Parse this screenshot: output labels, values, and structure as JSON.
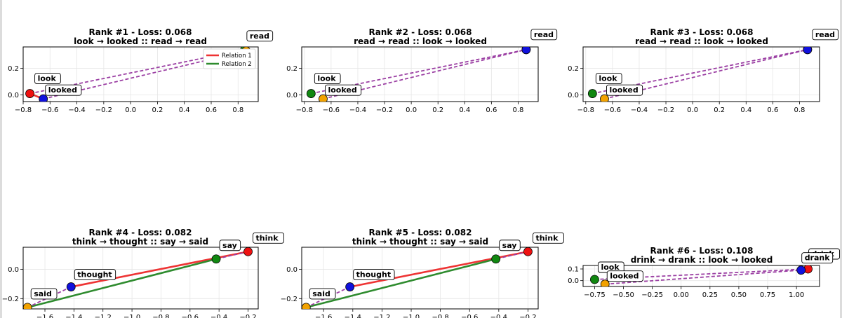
{
  "colors": {
    "relation1": "#ee3333",
    "relation2": "#2e8b2e",
    "dashed": "#9b3fa3",
    "red_point": "#ee1111",
    "blue_point": "#1111dd",
    "green_point": "#118811",
    "orange_point": "#f2a200",
    "grid": "#e6e6e6"
  },
  "legend": {
    "relation1": "Relation 1",
    "relation2": "Relation 2"
  },
  "chart_data": [
    {
      "type": "scatter",
      "title": "Rank #1 - Loss: 0.068",
      "subtitle": "look → looked :: read → read",
      "xlim": [
        -0.8,
        0.95
      ],
      "ylim": [
        -0.05,
        0.36
      ],
      "xticks": [
        -0.8,
        -0.6,
        -0.4,
        -0.2,
        0.0,
        0.2,
        0.4,
        0.6,
        0.8
      ],
      "xtick_labels": [
        "−0.8",
        "−0.6",
        "−0.4",
        "−0.2",
        "0.0",
        "0.2",
        "0.4",
        "0.6",
        "0.8"
      ],
      "yticks": [
        0.0,
        0.2
      ],
      "ytick_labels": [
        "0.0",
        "0.2"
      ],
      "legend": "top-right",
      "points": [
        {
          "word": "look",
          "x": -0.75,
          "y": 0.01,
          "color": "red"
        },
        {
          "word": "looked",
          "x": -0.65,
          "y": -0.03,
          "color": "blue"
        },
        {
          "word": "read",
          "x": 0.85,
          "y": 0.34,
          "color": "green"
        },
        {
          "word": "read",
          "x": 0.86,
          "y": 0.33,
          "color": "orange"
        }
      ],
      "relation_lines": [
        {
          "from": 0,
          "to": 1,
          "style": "relation1"
        },
        {
          "from": 2,
          "to": 3,
          "style": "relation2"
        }
      ],
      "dashed_lines": [
        [
          0,
          2
        ],
        [
          1,
          3
        ]
      ],
      "labels": [
        {
          "point": 0,
          "text": "look",
          "dx": 10,
          "dy": -18
        },
        {
          "point": 1,
          "text": "looked",
          "dx": 6,
          "dy": -9
        },
        {
          "point": 2,
          "text": "read",
          "dx": 6,
          "dy": -16
        }
      ]
    },
    {
      "type": "scatter",
      "title": "Rank #2 - Loss: 0.068",
      "subtitle": "read → read :: look → looked",
      "xlim": [
        -0.82,
        0.95
      ],
      "ylim": [
        -0.05,
        0.36
      ],
      "xticks": [
        -0.8,
        -0.6,
        -0.4,
        -0.2,
        0.0,
        0.2,
        0.4,
        0.6,
        0.8
      ],
      "xtick_labels": [
        "−0.8",
        "−0.6",
        "−0.4",
        "−0.2",
        "0.0",
        "0.2",
        "0.4",
        "0.6",
        "0.8"
      ],
      "yticks": [
        0.0,
        0.2
      ],
      "ytick_labels": [
        "0.0",
        "0.2"
      ],
      "points": [
        {
          "word": "read",
          "x": 0.86,
          "y": 0.34,
          "color": "red"
        },
        {
          "word": "read",
          "x": 0.86,
          "y": 0.34,
          "color": "blue"
        },
        {
          "word": "look",
          "x": -0.75,
          "y": 0.01,
          "color": "green"
        },
        {
          "word": "looked",
          "x": -0.66,
          "y": -0.03,
          "color": "orange"
        }
      ],
      "relation_lines": [],
      "dashed_lines": [
        [
          2,
          0
        ],
        [
          3,
          1
        ]
      ],
      "labels": [
        {
          "point": 0,
          "text": "read",
          "dx": 10,
          "dy": -18
        },
        {
          "point": 2,
          "text": "look",
          "dx": 8,
          "dy": -18
        },
        {
          "point": 3,
          "text": "looked",
          "dx": 6,
          "dy": -9
        }
      ]
    },
    {
      "type": "scatter",
      "title": "Rank #3 - Loss: 0.068",
      "subtitle": "read → read :: look → looked",
      "xlim": [
        -0.82,
        0.95
      ],
      "ylim": [
        -0.05,
        0.36
      ],
      "xticks": [
        -0.8,
        -0.6,
        -0.4,
        -0.2,
        0.0,
        0.2,
        0.4,
        0.6,
        0.8
      ],
      "xtick_labels": [
        "−0.8",
        "−0.6",
        "−0.4",
        "−0.2",
        "0.0",
        "0.2",
        "0.4",
        "0.6",
        "0.8"
      ],
      "yticks": [
        0.0,
        0.2
      ],
      "ytick_labels": [
        "0.0",
        "0.2"
      ],
      "points": [
        {
          "word": "read",
          "x": 0.86,
          "y": 0.34,
          "color": "red"
        },
        {
          "word": "read",
          "x": 0.86,
          "y": 0.34,
          "color": "blue"
        },
        {
          "word": "look",
          "x": -0.75,
          "y": 0.01,
          "color": "green"
        },
        {
          "word": "looked",
          "x": -0.66,
          "y": -0.03,
          "color": "orange"
        }
      ],
      "relation_lines": [],
      "dashed_lines": [
        [
          2,
          0
        ],
        [
          3,
          1
        ]
      ],
      "labels": [
        {
          "point": 0,
          "text": "read",
          "dx": 10,
          "dy": -18
        },
        {
          "point": 2,
          "text": "look",
          "dx": 8,
          "dy": -18
        },
        {
          "point": 3,
          "text": "looked",
          "dx": 6,
          "dy": -9
        }
      ]
    },
    {
      "type": "scatter",
      "title": "Rank #4 - Loss: 0.082",
      "subtitle": "think → thought :: say → said",
      "xlim": [
        -1.75,
        -0.13
      ],
      "ylim": [
        -0.27,
        0.15
      ],
      "xticks": [
        -1.6,
        -1.4,
        -1.2,
        -1.0,
        -0.8,
        -0.6,
        -0.4,
        -0.2
      ],
      "xtick_labels": [
        "−1.6",
        "−1.4",
        "−1.2",
        "−1.0",
        "−0.8",
        "−0.6",
        "−0.4",
        "−0.2"
      ],
      "yticks": [
        -0.2,
        0.0
      ],
      "ytick_labels": [
        "−0.2",
        "0.0"
      ],
      "points": [
        {
          "word": "think",
          "x": -0.2,
          "y": 0.12,
          "color": "red"
        },
        {
          "word": "thought",
          "x": -1.42,
          "y": -0.12,
          "color": "blue"
        },
        {
          "word": "say",
          "x": -0.42,
          "y": 0.07,
          "color": "green"
        },
        {
          "word": "said",
          "x": -1.72,
          "y": -0.26,
          "color": "orange"
        }
      ],
      "relation_lines": [
        {
          "from": 0,
          "to": 1,
          "style": "relation1"
        },
        {
          "from": 2,
          "to": 3,
          "style": "relation2"
        }
      ],
      "dashed_lines": [
        [
          0,
          2
        ],
        [
          1,
          3
        ]
      ],
      "labels": [
        {
          "point": 0,
          "text": "think",
          "dx": 10,
          "dy": -16
        },
        {
          "point": 1,
          "text": "thought",
          "dx": 8,
          "dy": -14
        },
        {
          "point": 2,
          "text": "say",
          "dx": 8,
          "dy": -16
        },
        {
          "point": 3,
          "text": "said",
          "dx": 8,
          "dy": -16
        }
      ]
    },
    {
      "type": "scatter",
      "title": "Rank #5 - Loss: 0.082",
      "subtitle": "think → thought :: say → said",
      "xlim": [
        -1.75,
        -0.13
      ],
      "ylim": [
        -0.27,
        0.15
      ],
      "xticks": [
        -1.6,
        -1.4,
        -1.2,
        -1.0,
        -0.8,
        -0.6,
        -0.4,
        -0.2
      ],
      "xtick_labels": [
        "−1.6",
        "−1.4",
        "−1.2",
        "−1.0",
        "−0.8",
        "−0.6",
        "−0.4",
        "−0.2"
      ],
      "yticks": [
        -0.2,
        0.0
      ],
      "ytick_labels": [
        "−0.2",
        "0.0"
      ],
      "points": [
        {
          "word": "think",
          "x": -0.2,
          "y": 0.12,
          "color": "red"
        },
        {
          "word": "thought",
          "x": -1.42,
          "y": -0.12,
          "color": "blue"
        },
        {
          "word": "say",
          "x": -0.42,
          "y": 0.07,
          "color": "green"
        },
        {
          "word": "said",
          "x": -1.72,
          "y": -0.26,
          "color": "orange"
        }
      ],
      "relation_lines": [
        {
          "from": 0,
          "to": 1,
          "style": "relation1"
        },
        {
          "from": 2,
          "to": 3,
          "style": "relation2"
        }
      ],
      "dashed_lines": [
        [
          0,
          2
        ],
        [
          1,
          3
        ]
      ],
      "labels": [
        {
          "point": 0,
          "text": "think",
          "dx": 10,
          "dy": -16
        },
        {
          "point": 1,
          "text": "thought",
          "dx": 8,
          "dy": -14
        },
        {
          "point": 2,
          "text": "say",
          "dx": 8,
          "dy": -16
        },
        {
          "point": 3,
          "text": "said",
          "dx": 8,
          "dy": -16
        }
      ]
    },
    {
      "type": "scatter",
      "title": "Rank #6 - Loss: 0.108",
      "subtitle": "drink → drank :: look → looked",
      "xlim": [
        -0.85,
        1.2
      ],
      "ylim": [
        -0.05,
        0.13
      ],
      "xticks": [
        -0.75,
        -0.5,
        -0.25,
        0.0,
        0.25,
        0.5,
        0.75,
        1.0
      ],
      "xtick_labels": [
        "−0.75",
        "−0.50",
        "−0.25",
        "0.00",
        "0.25",
        "0.50",
        "0.75",
        "1.00"
      ],
      "yticks": [
        0.0,
        0.1
      ],
      "ytick_labels": [
        "0.0",
        "0.1"
      ],
      "points": [
        {
          "word": "drink",
          "x": 1.1,
          "y": 0.1,
          "color": "red"
        },
        {
          "word": "drank",
          "x": 1.04,
          "y": 0.09,
          "color": "blue"
        },
        {
          "word": "look",
          "x": -0.75,
          "y": 0.01,
          "color": "green"
        },
        {
          "word": "looked",
          "x": -0.66,
          "y": -0.03,
          "color": "orange"
        }
      ],
      "relation_lines": [],
      "dashed_lines": [
        [
          2,
          0
        ],
        [
          3,
          1
        ]
      ],
      "labels": [
        {
          "point": 0,
          "text": "drink",
          "dx": 4,
          "dy": -18
        },
        {
          "point": 1,
          "text": "drank",
          "dx": 4,
          "dy": -14
        },
        {
          "point": 2,
          "text": "look",
          "dx": 8,
          "dy": -14
        },
        {
          "point": 3,
          "text": "looked",
          "dx": 6,
          "dy": -8
        }
      ]
    }
  ]
}
